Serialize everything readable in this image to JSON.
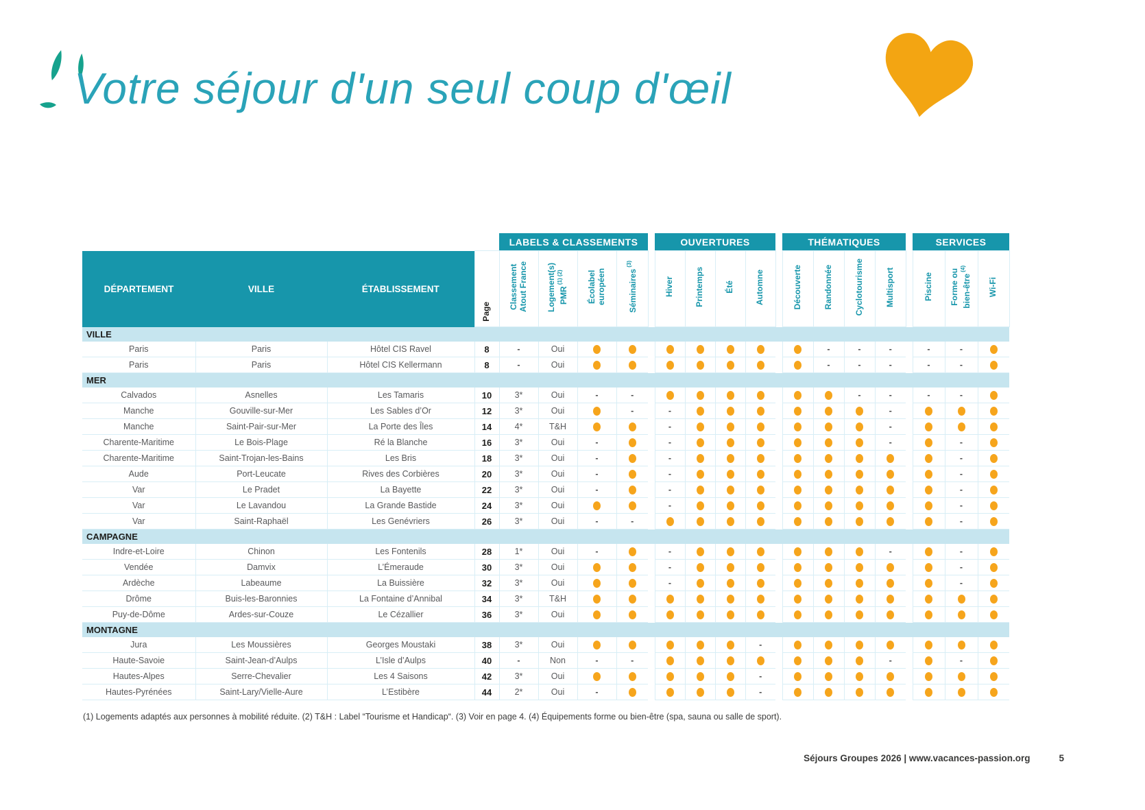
{
  "page": {
    "title": "Votre séjour d'un seul coup d'œil",
    "footnote": "(1) Logements adaptés aux personnes à mobilité réduite. (2) T&H : Label “Tourisme et Handicap“. (3) Voir en page 4. (4) Équipements forme ou bien-être (spa, sauna ou salle de sport).",
    "footer": {
      "text": "Séjours Groupes 2026 | www.vacances-passion.org",
      "page_number": "5"
    }
  },
  "colors": {
    "teal_header": "#1796AB",
    "section_bar": "#C6E5EF",
    "dot_orange": "#F6A51C",
    "title_teal": "#2AA3B8",
    "heart_orange": "#F3A512",
    "leaf_teal": "#16A28D"
  },
  "icons": {
    "heart": "heart-icon",
    "leaves": "leaf-decoration-icon"
  },
  "table": {
    "left_headers": [
      "DÉPARTEMENT",
      "VILLE",
      "ÉTABLISSEMENT"
    ],
    "page_col": "Page",
    "marker_legend": {
      "d": "disponible (point orange)",
      "-": "non disponible"
    },
    "groups": [
      {
        "label": "LABELS & CLASSEMENTS",
        "columns": [
          {
            "label": "Classement\nAtout France"
          },
          {
            "label": "Logement(s)\nPMR",
            "sup": "(1) (2)"
          },
          {
            "label": "Écolabel\neuropéen"
          },
          {
            "label": "Séminaires",
            "sup": "(3)"
          }
        ]
      },
      {
        "label": "OUVERTURES",
        "columns": [
          {
            "label": "Hiver"
          },
          {
            "label": "Printemps"
          },
          {
            "label": "Été"
          },
          {
            "label": "Automne"
          }
        ]
      },
      {
        "label": "THÉMATIQUES",
        "columns": [
          {
            "label": "Découverte"
          },
          {
            "label": "Randonnée"
          },
          {
            "label": "Cyclotourisme"
          },
          {
            "label": "Multisport"
          }
        ]
      },
      {
        "label": "SERVICES",
        "columns": [
          {
            "label": "Piscine"
          },
          {
            "label": "Forme ou\nbien-être",
            "sup": "(4)"
          },
          {
            "label": "Wi-Fi"
          }
        ]
      }
    ],
    "sections": [
      {
        "name": "VILLE",
        "rows": [
          {
            "dept": "Paris",
            "ville": "Paris",
            "etab": "Hôtel CIS Ravel",
            "page": "8",
            "values": [
              "-",
              "Oui",
              "d",
              "d",
              "d",
              "d",
              "d",
              "d",
              "d",
              "-",
              "-",
              "-",
              "-",
              "-",
              "d"
            ]
          },
          {
            "dept": "Paris",
            "ville": "Paris",
            "etab": "Hôtel CIS Kellermann",
            "page": "8",
            "values": [
              "-",
              "Oui",
              "d",
              "d",
              "d",
              "d",
              "d",
              "d",
              "d",
              "-",
              "-",
              "-",
              "-",
              "-",
              "d"
            ]
          }
        ]
      },
      {
        "name": "MER",
        "rows": [
          {
            "dept": "Calvados",
            "ville": "Asnelles",
            "etab": "Les Tamaris",
            "page": "10",
            "values": [
              "3*",
              "Oui",
              "-",
              "-",
              "d",
              "d",
              "d",
              "d",
              "d",
              "d",
              "-",
              "-",
              "-",
              "-",
              "d"
            ]
          },
          {
            "dept": "Manche",
            "ville": "Gouville-sur-Mer",
            "etab": "Les Sables d’Or",
            "page": "12",
            "values": [
              "3*",
              "Oui",
              "d",
              "-",
              "-",
              "d",
              "d",
              "d",
              "d",
              "d",
              "d",
              "-",
              "d",
              "d",
              "d"
            ]
          },
          {
            "dept": "Manche",
            "ville": "Saint-Pair-sur-Mer",
            "etab": "La Porte des Îles",
            "page": "14",
            "values": [
              "4*",
              "T&H",
              "d",
              "d",
              "-",
              "d",
              "d",
              "d",
              "d",
              "d",
              "d",
              "-",
              "d",
              "d",
              "d"
            ]
          },
          {
            "dept": "Charente-Maritime",
            "ville": "Le Bois-Plage",
            "etab": "Ré la Blanche",
            "page": "16",
            "values": [
              "3*",
              "Oui",
              "-",
              "d",
              "-",
              "d",
              "d",
              "d",
              "d",
              "d",
              "d",
              "-",
              "d",
              "-",
              "d"
            ]
          },
          {
            "dept": "Charente-Maritime",
            "ville": "Saint-Trojan-les-Bains",
            "etab": "Les Bris",
            "page": "18",
            "values": [
              "3*",
              "Oui",
              "-",
              "d",
              "-",
              "d",
              "d",
              "d",
              "d",
              "d",
              "d",
              "d",
              "d",
              "-",
              "d"
            ]
          },
          {
            "dept": "Aude",
            "ville": "Port-Leucate",
            "etab": "Rives des Corbières",
            "page": "20",
            "values": [
              "3*",
              "Oui",
              "-",
              "d",
              "-",
              "d",
              "d",
              "d",
              "d",
              "d",
              "d",
              "d",
              "d",
              "-",
              "d"
            ]
          },
          {
            "dept": "Var",
            "ville": "Le Pradet",
            "etab": "La Bayette",
            "page": "22",
            "values": [
              "3*",
              "Oui",
              "-",
              "d",
              "-",
              "d",
              "d",
              "d",
              "d",
              "d",
              "d",
              "d",
              "d",
              "-",
              "d"
            ]
          },
          {
            "dept": "Var",
            "ville": "Le Lavandou",
            "etab": "La Grande Bastide",
            "page": "24",
            "values": [
              "3*",
              "Oui",
              "d",
              "d",
              "-",
              "d",
              "d",
              "d",
              "d",
              "d",
              "d",
              "d",
              "d",
              "-",
              "d"
            ]
          },
          {
            "dept": "Var",
            "ville": "Saint-Raphaël",
            "etab": "Les Genévriers",
            "page": "26",
            "values": [
              "3*",
              "Oui",
              "-",
              "-",
              "d",
              "d",
              "d",
              "d",
              "d",
              "d",
              "d",
              "d",
              "d",
              "-",
              "d"
            ]
          }
        ]
      },
      {
        "name": "CAMPAGNE",
        "rows": [
          {
            "dept": "Indre-et-Loire",
            "ville": "Chinon",
            "etab": "Les Fontenils",
            "page": "28",
            "values": [
              "1*",
              "Oui",
              "-",
              "d",
              "-",
              "d",
              "d",
              "d",
              "d",
              "d",
              "d",
              "-",
              "d",
              "-",
              "d"
            ]
          },
          {
            "dept": "Vendée",
            "ville": "Damvix",
            "etab": "L’Émeraude",
            "page": "30",
            "values": [
              "3*",
              "Oui",
              "d",
              "d",
              "-",
              "d",
              "d",
              "d",
              "d",
              "d",
              "d",
              "d",
              "d",
              "-",
              "d"
            ]
          },
          {
            "dept": "Ardèche",
            "ville": "Labeaume",
            "etab": "La Buissière",
            "page": "32",
            "values": [
              "3*",
              "Oui",
              "d",
              "d",
              "-",
              "d",
              "d",
              "d",
              "d",
              "d",
              "d",
              "d",
              "d",
              "-",
              "d"
            ]
          },
          {
            "dept": "Drôme",
            "ville": "Buis-les-Baronnies",
            "etab": "La Fontaine d’Annibal",
            "page": "34",
            "values": [
              "3*",
              "T&H",
              "d",
              "d",
              "d",
              "d",
              "d",
              "d",
              "d",
              "d",
              "d",
              "d",
              "d",
              "d",
              "d"
            ]
          },
          {
            "dept": "Puy-de-Dôme",
            "ville": "Ardes-sur-Couze",
            "etab": "Le Cézallier",
            "page": "36",
            "values": [
              "3*",
              "Oui",
              "d",
              "d",
              "d",
              "d",
              "d",
              "d",
              "d",
              "d",
              "d",
              "d",
              "d",
              "d",
              "d"
            ]
          }
        ]
      },
      {
        "name": "MONTAGNE",
        "rows": [
          {
            "dept": "Jura",
            "ville": "Les Moussières",
            "etab": "Georges Moustaki",
            "page": "38",
            "values": [
              "3*",
              "Oui",
              "d",
              "d",
              "d",
              "d",
              "d",
              "-",
              "d",
              "d",
              "d",
              "d",
              "d",
              "d",
              "d"
            ]
          },
          {
            "dept": "Haute-Savoie",
            "ville": "Saint-Jean-d’Aulps",
            "etab": "L’Isle d’Aulps",
            "page": "40",
            "values": [
              "-",
              "Non",
              "-",
              "-",
              "d",
              "d",
              "d",
              "d",
              "d",
              "d",
              "d",
              "-",
              "d",
              "-",
              "d"
            ]
          },
          {
            "dept": "Hautes-Alpes",
            "ville": "Serre-Chevalier",
            "etab": "Les 4 Saisons",
            "page": "42",
            "values": [
              "3*",
              "Oui",
              "d",
              "d",
              "d",
              "d",
              "d",
              "-",
              "d",
              "d",
              "d",
              "d",
              "d",
              "d",
              "d"
            ]
          },
          {
            "dept": "Hautes-Pyrénées",
            "ville": "Saint-Lary/Vielle-Aure",
            "etab": "L’Estibère",
            "page": "44",
            "values": [
              "2*",
              "Oui",
              "-",
              "d",
              "d",
              "d",
              "d",
              "-",
              "d",
              "d",
              "d",
              "d",
              "d",
              "d",
              "d"
            ]
          }
        ]
      }
    ]
  }
}
